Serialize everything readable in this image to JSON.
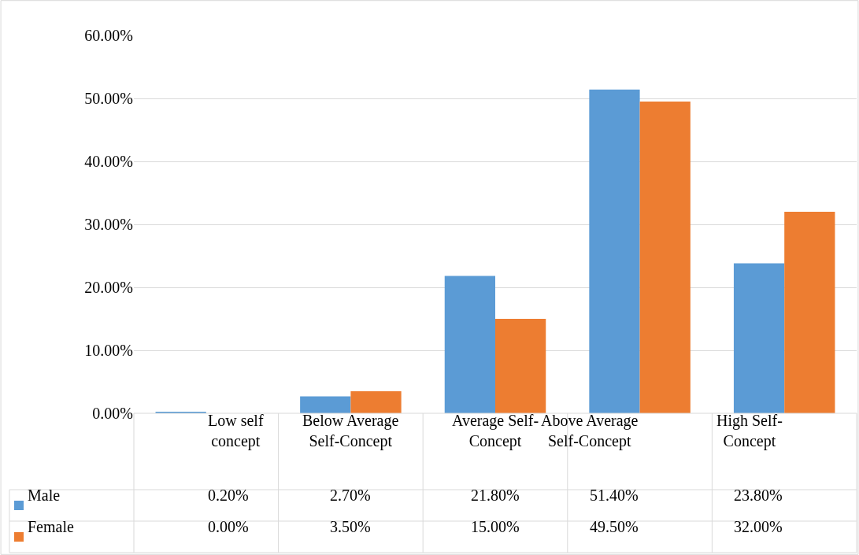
{
  "chart_data": {
    "type": "bar",
    "categories": [
      "Low self concept",
      "Below Average Self-Concept",
      "Average Self-Concept",
      "Above Average Self-Concept",
      "High Self-Concept"
    ],
    "series": [
      {
        "name": "Male",
        "color": "#5b9bd5",
        "values": [
          0.2,
          2.7,
          21.8,
          51.4,
          23.8
        ],
        "value_labels": [
          "0.20%",
          "2.70%",
          "21.80%",
          "51.40%",
          "23.80%"
        ]
      },
      {
        "name": "Female",
        "color": "#ed7d31",
        "values": [
          0.0,
          3.5,
          15.0,
          49.5,
          32.0
        ],
        "value_labels": [
          "0.00%",
          "3.50%",
          "15.00%",
          "49.50%",
          "32.00%"
        ]
      }
    ],
    "ylim": [
      0,
      60
    ],
    "yticks": [
      {
        "value": 0,
        "label": "0.00%"
      },
      {
        "value": 10,
        "label": "10.00%"
      },
      {
        "value": 20,
        "label": "20.00%"
      },
      {
        "value": 30,
        "label": "30.00%"
      },
      {
        "value": 40,
        "label": "40.00%"
      },
      {
        "value": 50,
        "label": "50.00%"
      },
      {
        "value": 60,
        "label": "60.00%"
      }
    ],
    "grid": "y",
    "tick_labels": "y",
    "legend": "bottom left"
  }
}
